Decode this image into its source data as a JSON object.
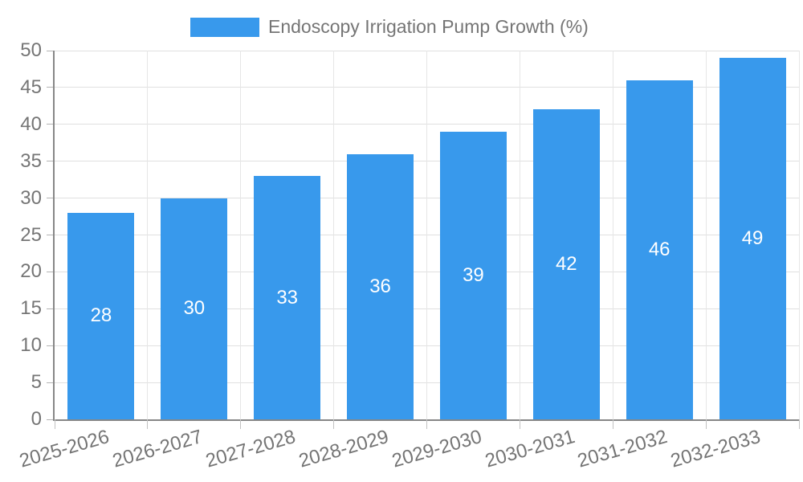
{
  "chart_data": {
    "type": "bar",
    "legend": "Endoscopy Irrigation Pump Growth (%)",
    "legend_position": "top",
    "categories": [
      "2025-2026",
      "2026-2027",
      "2027-2028",
      "2028-2029",
      "2029-2030",
      "2030-2031",
      "2031-2032",
      "2032-2033"
    ],
    "values": [
      28,
      30,
      33,
      36,
      39,
      42,
      46,
      49
    ],
    "value_labels_shown": true,
    "xlabel": "",
    "ylabel": "",
    "ylim": [
      0,
      50
    ],
    "ytick_step": 5,
    "yticks": [
      0,
      5,
      10,
      15,
      20,
      25,
      30,
      35,
      40,
      45,
      50
    ],
    "grid": true,
    "colors": {
      "bar": "#3899ec",
      "value_label": "#ffffff",
      "axis_text": "#757575",
      "legend_text": "#757575",
      "axis_line": "#878787",
      "h_gridline": "#e0e0e0",
      "v_gridline": "#e6e6e6"
    }
  }
}
